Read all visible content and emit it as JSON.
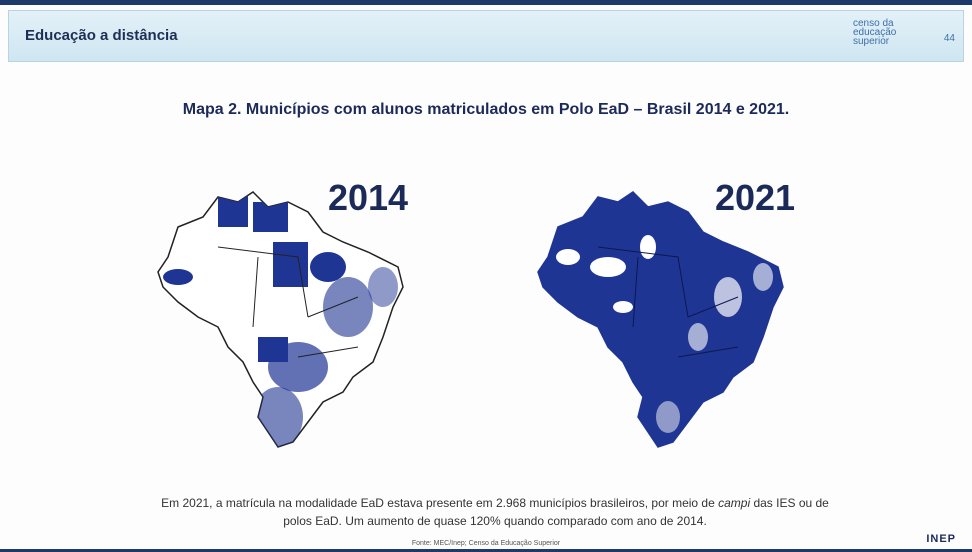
{
  "header": {
    "title": "Educação a distância",
    "logo": "censo da educação superior",
    "page": "44"
  },
  "title": "Mapa 2. Municípios com alunos matriculados em Polo EaD – Brasil 2014 e 2021.",
  "maps": [
    {
      "label": "2014"
    },
    {
      "label": "2021"
    }
  ],
  "paragraph": {
    "parts": [
      "Em 2021, a matrícula na modalidade EaD estava presente em 2.968 municípios brasileiros, por meio de ",
      "campi",
      " das IES ou de polos EaD. Um aumento de quase 120% quando comparado com ano de 2014."
    ]
  },
  "footer": {
    "source": "Fonte: MEC/Inep; Censo da Educação Superior",
    "logo": "INEP"
  }
}
